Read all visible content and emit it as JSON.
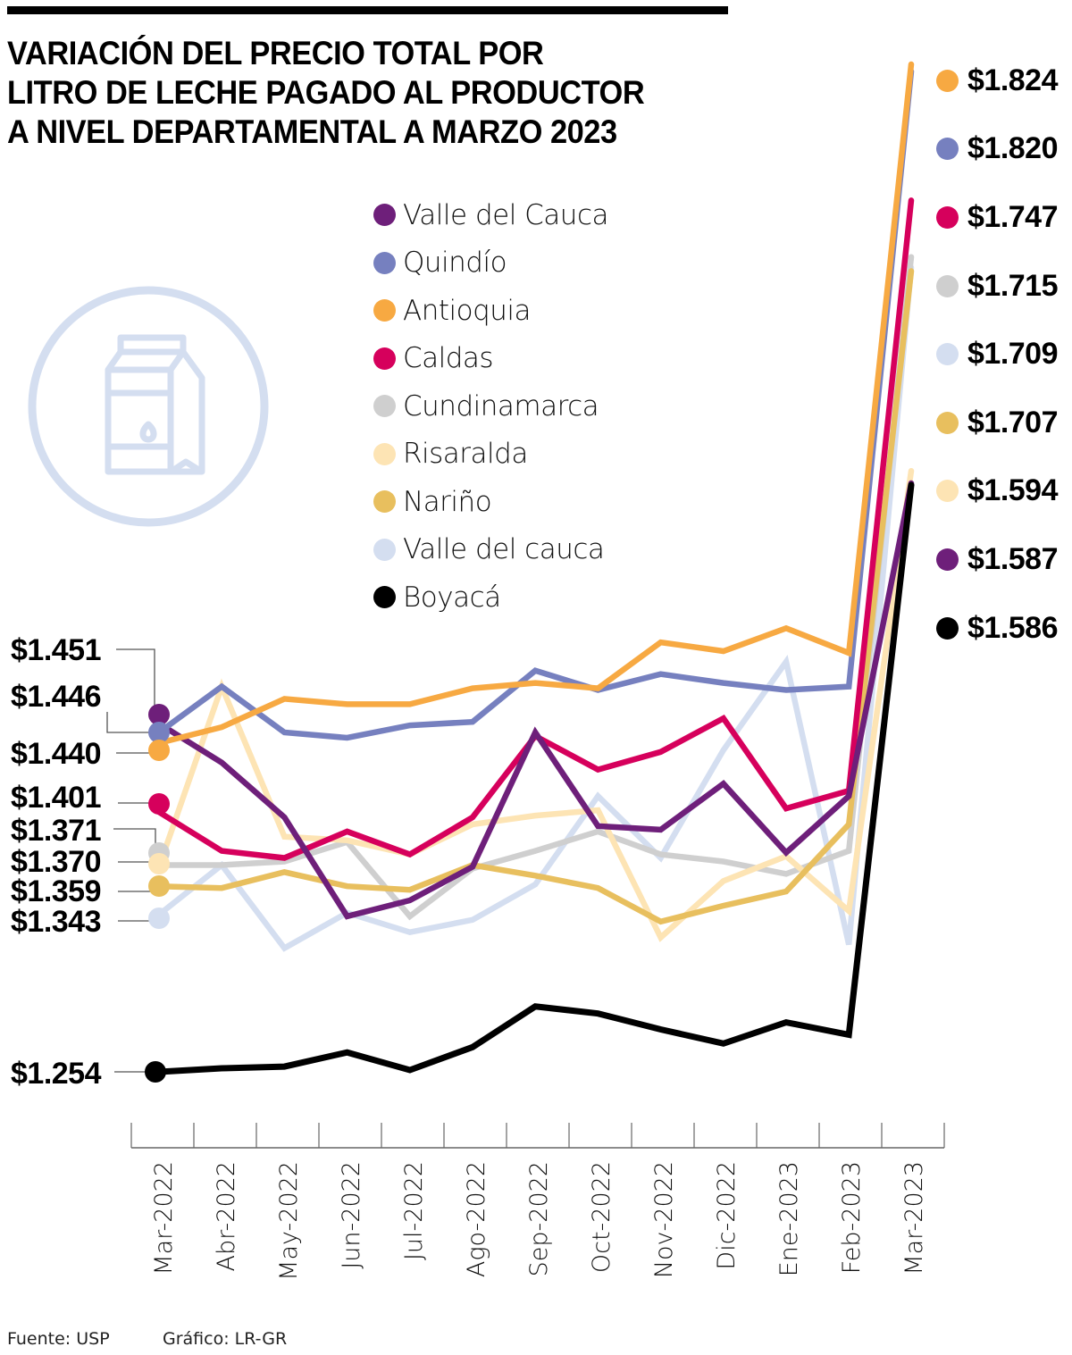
{
  "chart_data": {
    "type": "line",
    "title": "VARIACIÓN DEL PRECIO TOTAL POR\nLITRO DE LECHE PAGADO AL PRODUCTOR\nA NIVEL DEPARTAMENTAL A MARZO 2023",
    "xlabel": "",
    "ylabel": "",
    "ylim": [
      1254,
      1824
    ],
    "grid": false,
    "legend_position": "top-center",
    "categories": [
      "Mar-2022",
      "Abr-2022",
      "May-2022",
      "Jun-2022",
      "Jul-2022",
      "Ago-2022",
      "Sep-2022",
      "Oct-2022",
      "Nov-2022",
      "Dic-2022",
      "Ene-2023",
      "Feb-2023",
      "Mar-2023"
    ],
    "series": [
      {
        "name": "Valle del Cauca",
        "color": "#6e1f7a",
        "values": [
          1451,
          1429,
          1398,
          1342,
          1351,
          1370,
          1446,
          1393,
          1391,
          1417,
          1378,
          1410,
          1587
        ]
      },
      {
        "name": "Quindío",
        "color": "#7680bf",
        "values": [
          1446,
          1472,
          1446,
          1443,
          1450,
          1452,
          1481,
          1470,
          1479,
          1474,
          1470,
          1472,
          1820
        ]
      },
      {
        "name": "Antioquia",
        "color": "#f7a942",
        "values": [
          1440,
          1449,
          1465,
          1462,
          1462,
          1471,
          1474,
          1471,
          1497,
          1492,
          1505,
          1491,
          1824
        ]
      },
      {
        "name": "Caldas",
        "color": "#d6005c",
        "values": [
          1401,
          1379,
          1375,
          1390,
          1377,
          1398,
          1444,
          1425,
          1435,
          1454,
          1403,
          1413,
          1747
        ]
      },
      {
        "name": "Cundinamarca",
        "color": "#cfcfcf",
        "values": [
          1371,
          1371,
          1373,
          1384,
          1342,
          1369,
          1379,
          1390,
          1377,
          1373,
          1366,
          1379,
          1715
        ]
      },
      {
        "name": "Risaralda",
        "color": "#fde4b4",
        "values": [
          1370,
          1472,
          1387,
          1385,
          1377,
          1394,
          1399,
          1402,
          1330,
          1362,
          1376,
          1345,
          1594
        ]
      },
      {
        "name": "Nariño",
        "color": "#e8bf5e",
        "values": [
          1359,
          1358,
          1367,
          1359,
          1357,
          1371,
          1365,
          1358,
          1339,
          1348,
          1356,
          1394,
          1707
        ]
      },
      {
        "name": "Valle del cauca",
        "color": "#d4def0",
        "values": [
          1343,
          1371,
          1324,
          1344,
          1333,
          1340,
          1360,
          1410,
          1375,
          1436,
          1486,
          1326,
          1709
        ]
      },
      {
        "name": "Boyacá",
        "color": "#000000",
        "values": [
          1254,
          1256,
          1257,
          1265,
          1255,
          1268,
          1291,
          1287,
          1278,
          1270,
          1282,
          1275,
          1586
        ]
      }
    ],
    "start_labels": [
      {
        "text": "$1.451",
        "series": 0
      },
      {
        "text": "$1.446",
        "series": 1
      },
      {
        "text": "$1.440",
        "series": 2
      },
      {
        "text": "$1.401",
        "series": 3
      },
      {
        "text": "$1.371",
        "series": 4
      },
      {
        "text": "$1.370",
        "series": 5
      },
      {
        "text": "$1.359",
        "series": 6
      },
      {
        "text": "$1.343",
        "series": 7
      },
      {
        "text": "$1.254",
        "series": 8
      }
    ],
    "end_labels": [
      {
        "text": "$1.824",
        "color": "#f7a942"
      },
      {
        "text": "$1.820",
        "color": "#7680bf"
      },
      {
        "text": "$1.747",
        "color": "#d6005c"
      },
      {
        "text": "$1.715",
        "color": "#cfcfcf"
      },
      {
        "text": "$1.709",
        "color": "#d4def0"
      },
      {
        "text": "$1.707",
        "color": "#e8bf5e"
      },
      {
        "text": "$1.594",
        "color": "#fde4b4"
      },
      {
        "text": "$1.587",
        "color": "#6e1f7a"
      },
      {
        "text": "$1.586",
        "color": "#000000"
      }
    ]
  },
  "footer": {
    "source": "Fuente: USP",
    "credit": "Gráfico: LR-GR"
  },
  "icon": {
    "name": "milk-carton-icon",
    "color": "#d4def0"
  }
}
